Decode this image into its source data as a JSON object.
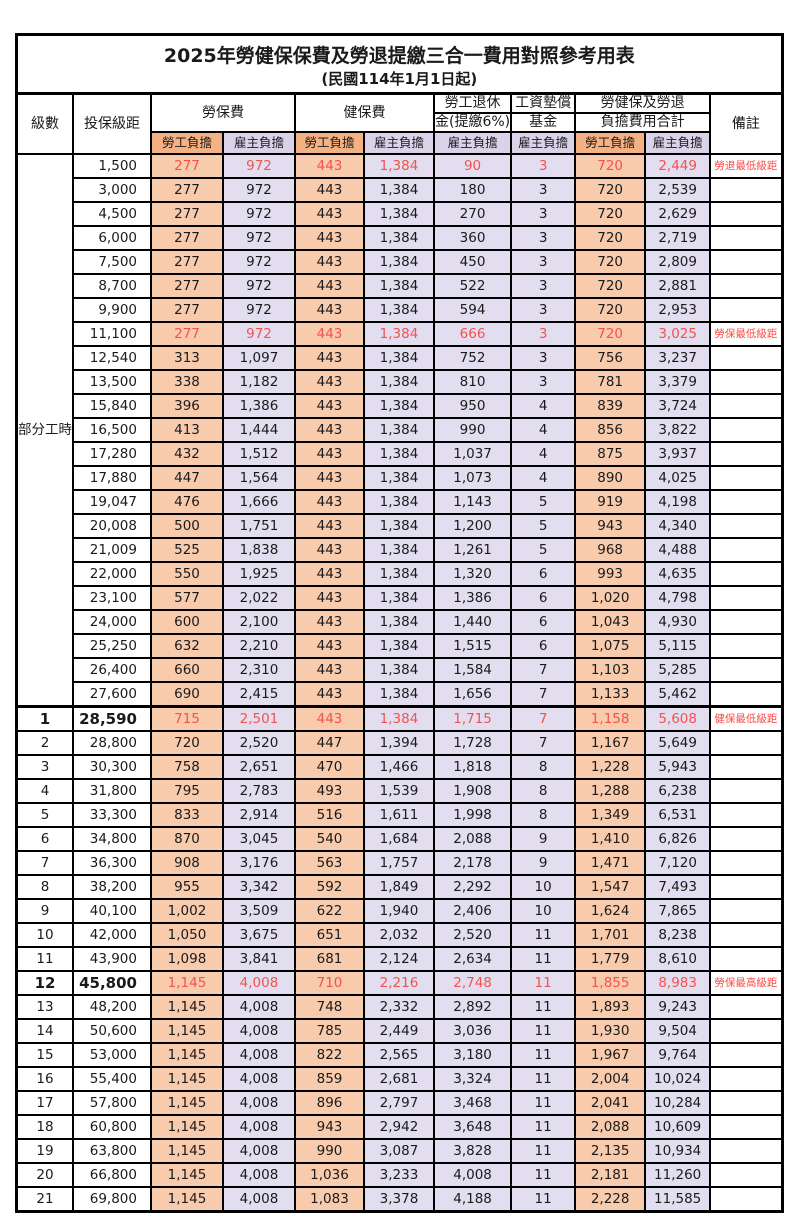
{
  "title": "2025年勞健保保費及勞退提繳三合一費用對照參考用表",
  "subtitle": "(民國114年1月1日起)",
  "colors": {
    "orange_header": "#F4B183",
    "orange_cell": "#F8CBAD",
    "purple_header": "#D9D2E9",
    "purple_cell": "#E2DEF0",
    "red_value": "#F4524D",
    "red_note": "#FA4B45"
  },
  "header": {
    "level": "級數",
    "bracket": "投保級距",
    "labor": "勞保費",
    "health": "健保費",
    "pension_line1": "勞工退休",
    "pension_line2": "金(提繳6%)",
    "wage_line1": "工資墊償",
    "wage_line2": "基金",
    "total_line1": "勞健保及勞退",
    "total_line2": "負擔費用合計",
    "note": "備註",
    "employee_burden": "勞工負擔",
    "employer_burden": "雇主負擔"
  },
  "part_time_label": "部分工時",
  "part_time_rows": [
    {
      "bracket": "1,500",
      "values": [
        "277",
        "972",
        "443",
        "1,384",
        "90",
        "3",
        "720",
        "2,449"
      ],
      "note": "勞退最低級距",
      "red": true
    },
    {
      "bracket": "3,000",
      "values": [
        "277",
        "972",
        "443",
        "1,384",
        "180",
        "3",
        "720",
        "2,539"
      ],
      "note": ""
    },
    {
      "bracket": "4,500",
      "values": [
        "277",
        "972",
        "443",
        "1,384",
        "270",
        "3",
        "720",
        "2,629"
      ],
      "note": ""
    },
    {
      "bracket": "6,000",
      "values": [
        "277",
        "972",
        "443",
        "1,384",
        "360",
        "3",
        "720",
        "2,719"
      ],
      "note": ""
    },
    {
      "bracket": "7,500",
      "values": [
        "277",
        "972",
        "443",
        "1,384",
        "450",
        "3",
        "720",
        "2,809"
      ],
      "note": ""
    },
    {
      "bracket": "8,700",
      "values": [
        "277",
        "972",
        "443",
        "1,384",
        "522",
        "3",
        "720",
        "2,881"
      ],
      "note": ""
    },
    {
      "bracket": "9,900",
      "values": [
        "277",
        "972",
        "443",
        "1,384",
        "594",
        "3",
        "720",
        "2,953"
      ],
      "note": ""
    },
    {
      "bracket": "11,100",
      "values": [
        "277",
        "972",
        "443",
        "1,384",
        "666",
        "3",
        "720",
        "3,025"
      ],
      "note": "勞保最低級距",
      "red": true
    },
    {
      "bracket": "12,540",
      "values": [
        "313",
        "1,097",
        "443",
        "1,384",
        "752",
        "3",
        "756",
        "3,237"
      ],
      "note": ""
    },
    {
      "bracket": "13,500",
      "values": [
        "338",
        "1,182",
        "443",
        "1,384",
        "810",
        "3",
        "781",
        "3,379"
      ],
      "note": ""
    },
    {
      "bracket": "15,840",
      "values": [
        "396",
        "1,386",
        "443",
        "1,384",
        "950",
        "4",
        "839",
        "3,724"
      ],
      "note": ""
    },
    {
      "bracket": "16,500",
      "values": [
        "413",
        "1,444",
        "443",
        "1,384",
        "990",
        "4",
        "856",
        "3,822"
      ],
      "note": ""
    },
    {
      "bracket": "17,280",
      "values": [
        "432",
        "1,512",
        "443",
        "1,384",
        "1,037",
        "4",
        "875",
        "3,937"
      ],
      "note": ""
    },
    {
      "bracket": "17,880",
      "values": [
        "447",
        "1,564",
        "443",
        "1,384",
        "1,073",
        "4",
        "890",
        "4,025"
      ],
      "note": ""
    },
    {
      "bracket": "19,047",
      "values": [
        "476",
        "1,666",
        "443",
        "1,384",
        "1,143",
        "5",
        "919",
        "4,198"
      ],
      "note": ""
    },
    {
      "bracket": "20,008",
      "values": [
        "500",
        "1,751",
        "443",
        "1,384",
        "1,200",
        "5",
        "943",
        "4,340"
      ],
      "note": ""
    },
    {
      "bracket": "21,009",
      "values": [
        "525",
        "1,838",
        "443",
        "1,384",
        "1,261",
        "5",
        "968",
        "4,488"
      ],
      "note": ""
    },
    {
      "bracket": "22,000",
      "values": [
        "550",
        "1,925",
        "443",
        "1,384",
        "1,320",
        "6",
        "993",
        "4,635"
      ],
      "note": ""
    },
    {
      "bracket": "23,100",
      "values": [
        "577",
        "2,022",
        "443",
        "1,384",
        "1,386",
        "6",
        "1,020",
        "4,798"
      ],
      "note": ""
    },
    {
      "bracket": "24,000",
      "values": [
        "600",
        "2,100",
        "443",
        "1,384",
        "1,440",
        "6",
        "1,043",
        "4,930"
      ],
      "note": ""
    },
    {
      "bracket": "25,250",
      "values": [
        "632",
        "2,210",
        "443",
        "1,384",
        "1,515",
        "6",
        "1,075",
        "5,115"
      ],
      "note": ""
    },
    {
      "bracket": "26,400",
      "values": [
        "660",
        "2,310",
        "443",
        "1,384",
        "1,584",
        "7",
        "1,103",
        "5,285"
      ],
      "note": ""
    },
    {
      "bracket": "27,600",
      "values": [
        "690",
        "2,415",
        "443",
        "1,384",
        "1,656",
        "7",
        "1,133",
        "5,462"
      ],
      "note": ""
    }
  ],
  "numbered_rows": [
    {
      "level": "1",
      "bracket": "28,590",
      "values": [
        "715",
        "2,501",
        "443",
        "1,384",
        "1,715",
        "7",
        "1,158",
        "5,608"
      ],
      "note": "健保最低級距",
      "red": true,
      "bold": true
    },
    {
      "level": "2",
      "bracket": "28,800",
      "values": [
        "720",
        "2,520",
        "447",
        "1,394",
        "1,728",
        "7",
        "1,167",
        "5,649"
      ],
      "note": ""
    },
    {
      "level": "3",
      "bracket": "30,300",
      "values": [
        "758",
        "2,651",
        "470",
        "1,466",
        "1,818",
        "8",
        "1,228",
        "5,943"
      ],
      "note": ""
    },
    {
      "level": "4",
      "bracket": "31,800",
      "values": [
        "795",
        "2,783",
        "493",
        "1,539",
        "1,908",
        "8",
        "1,288",
        "6,238"
      ],
      "note": ""
    },
    {
      "level": "5",
      "bracket": "33,300",
      "values": [
        "833",
        "2,914",
        "516",
        "1,611",
        "1,998",
        "8",
        "1,349",
        "6,531"
      ],
      "note": ""
    },
    {
      "level": "6",
      "bracket": "34,800",
      "values": [
        "870",
        "3,045",
        "540",
        "1,684",
        "2,088",
        "9",
        "1,410",
        "6,826"
      ],
      "note": ""
    },
    {
      "level": "7",
      "bracket": "36,300",
      "values": [
        "908",
        "3,176",
        "563",
        "1,757",
        "2,178",
        "9",
        "1,471",
        "7,120"
      ],
      "note": ""
    },
    {
      "level": "8",
      "bracket": "38,200",
      "values": [
        "955",
        "3,342",
        "592",
        "1,849",
        "2,292",
        "10",
        "1,547",
        "7,493"
      ],
      "note": ""
    },
    {
      "level": "9",
      "bracket": "40,100",
      "values": [
        "1,002",
        "3,509",
        "622",
        "1,940",
        "2,406",
        "10",
        "1,624",
        "7,865"
      ],
      "note": ""
    },
    {
      "level": "10",
      "bracket": "42,000",
      "values": [
        "1,050",
        "3,675",
        "651",
        "2,032",
        "2,520",
        "11",
        "1,701",
        "8,238"
      ],
      "note": ""
    },
    {
      "level": "11",
      "bracket": "43,900",
      "values": [
        "1,098",
        "3,841",
        "681",
        "2,124",
        "2,634",
        "11",
        "1,779",
        "8,610"
      ],
      "note": ""
    },
    {
      "level": "12",
      "bracket": "45,800",
      "values": [
        "1,145",
        "4,008",
        "710",
        "2,216",
        "2,748",
        "11",
        "1,855",
        "8,983"
      ],
      "note": "勞保最高級距",
      "red": true,
      "bold": true
    },
    {
      "level": "13",
      "bracket": "48,200",
      "values": [
        "1,145",
        "4,008",
        "748",
        "2,332",
        "2,892",
        "11",
        "1,893",
        "9,243"
      ],
      "note": ""
    },
    {
      "level": "14",
      "bracket": "50,600",
      "values": [
        "1,145",
        "4,008",
        "785",
        "2,449",
        "3,036",
        "11",
        "1,930",
        "9,504"
      ],
      "note": ""
    },
    {
      "level": "15",
      "bracket": "53,000",
      "values": [
        "1,145",
        "4,008",
        "822",
        "2,565",
        "3,180",
        "11",
        "1,967",
        "9,764"
      ],
      "note": ""
    },
    {
      "level": "16",
      "bracket": "55,400",
      "values": [
        "1,145",
        "4,008",
        "859",
        "2,681",
        "3,324",
        "11",
        "2,004",
        "10,024"
      ],
      "note": ""
    },
    {
      "level": "17",
      "bracket": "57,800",
      "values": [
        "1,145",
        "4,008",
        "896",
        "2,797",
        "3,468",
        "11",
        "2,041",
        "10,284"
      ],
      "note": ""
    },
    {
      "level": "18",
      "bracket": "60,800",
      "values": [
        "1,145",
        "4,008",
        "943",
        "2,942",
        "3,648",
        "11",
        "2,088",
        "10,609"
      ],
      "note": ""
    },
    {
      "level": "19",
      "bracket": "63,800",
      "values": [
        "1,145",
        "4,008",
        "990",
        "3,087",
        "3,828",
        "11",
        "2,135",
        "10,934"
      ],
      "note": ""
    },
    {
      "level": "20",
      "bracket": "66,800",
      "values": [
        "1,145",
        "4,008",
        "1,036",
        "3,233",
        "4,008",
        "11",
        "2,181",
        "11,260"
      ],
      "note": ""
    },
    {
      "level": "21",
      "bracket": "69,800",
      "values": [
        "1,145",
        "4,008",
        "1,083",
        "3,378",
        "4,188",
        "11",
        "2,228",
        "11,585"
      ],
      "note": ""
    }
  ]
}
